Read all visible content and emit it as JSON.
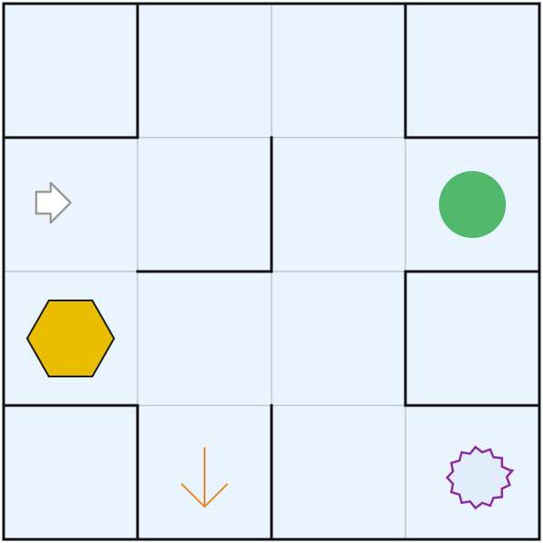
{
  "maze": {
    "rows": 4,
    "cols": 4,
    "colors": {
      "cell_fill": "#eaf4ff",
      "grid_line": "#c9d3dc",
      "wall": "#111111",
      "circle_goal": "#52b96c",
      "hexagon": "#e9bd00",
      "arrow_down": "#e8892c",
      "star_outline": "#8e2b9e",
      "star_fill": "#e1edfb",
      "player_arrow_outline": "#9a9a9a"
    },
    "objects": [
      {
        "type": "player-arrow",
        "row": 1,
        "col": 0,
        "direction": "right"
      },
      {
        "type": "circle",
        "row": 1,
        "col": 3,
        "color": "green"
      },
      {
        "type": "hexagon",
        "row": 2,
        "col": 0,
        "color": "yellow"
      },
      {
        "type": "arrow",
        "row": 3,
        "col": 1,
        "direction": "down",
        "color": "orange"
      },
      {
        "type": "starburst",
        "row": 3,
        "col": 3,
        "color": "purple"
      }
    ]
  }
}
